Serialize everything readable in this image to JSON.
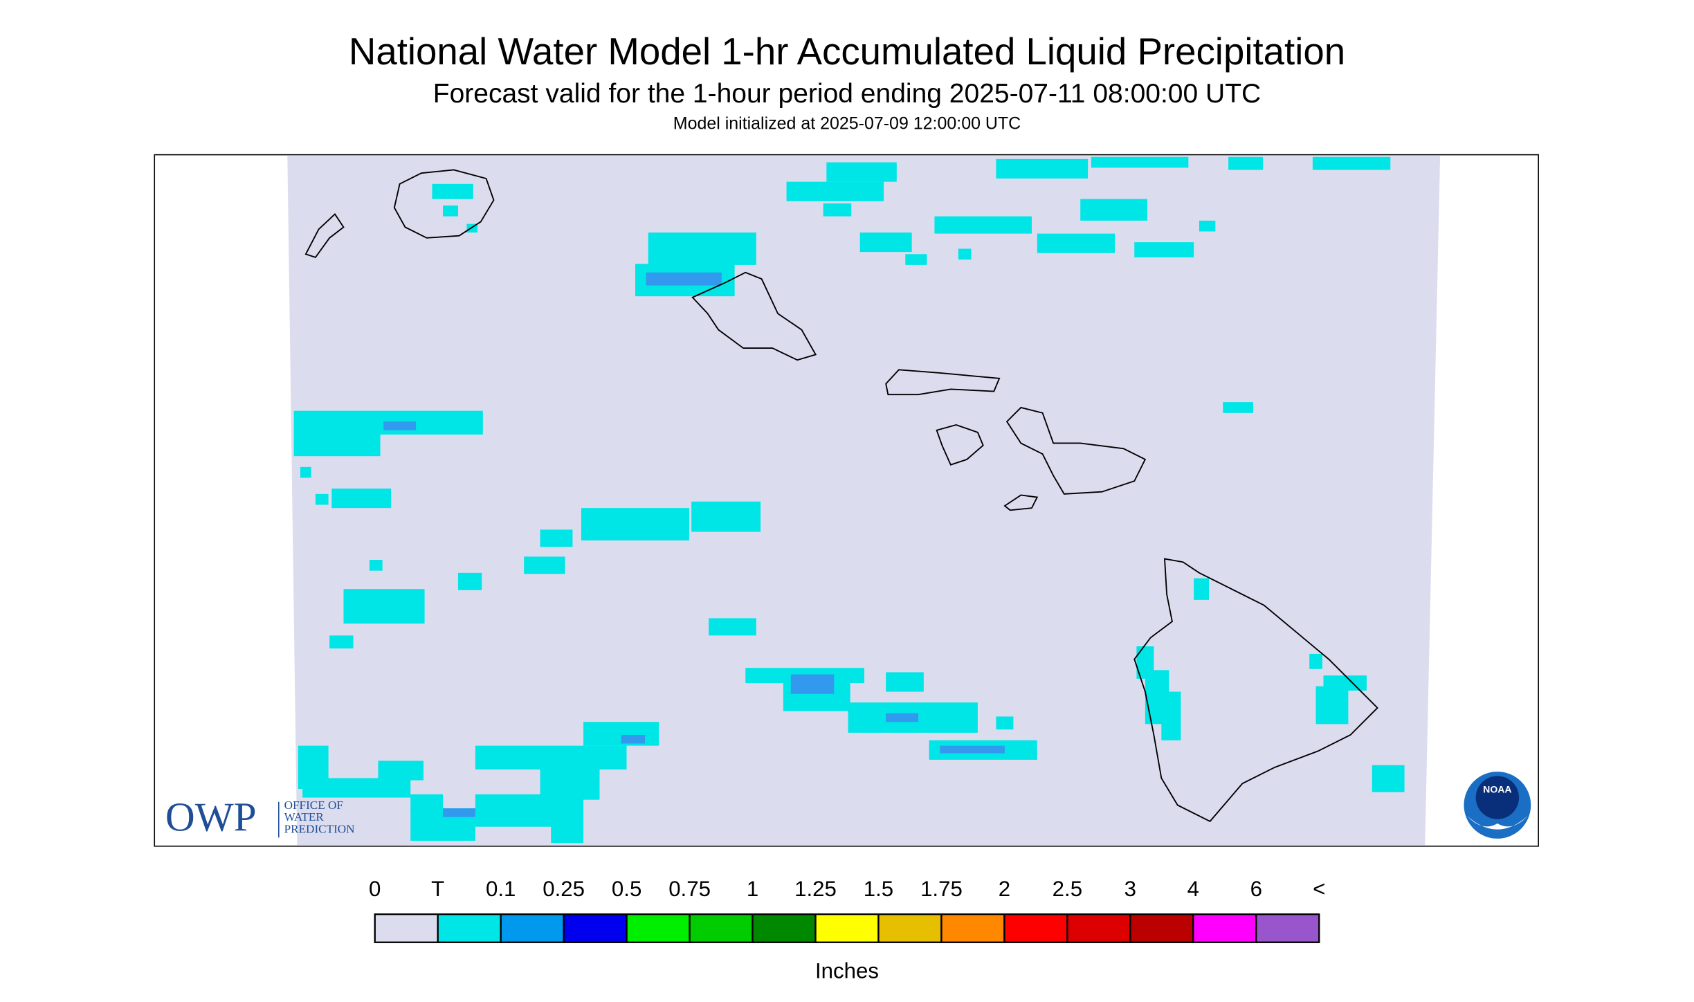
{
  "header": {
    "title": "National Water Model 1-hr Accumulated Liquid Precipitation",
    "subtitle": "Forecast valid for the 1-hour period ending 2025-07-11 08:00:00 UTC",
    "init": "Model initialized at 2025-07-09 12:00:00 UTC"
  },
  "logos": {
    "owp": "OWP",
    "owp_line1": "OFFICE OF",
    "owp_line2": "WATER",
    "owp_line3": "PREDICTION",
    "noaa": "NOAA"
  },
  "legend": {
    "labels": [
      "0",
      "T",
      "0.1",
      "0.25",
      "0.5",
      "0.75",
      "1",
      "1.25",
      "1.5",
      "1.75",
      "2",
      "2.5",
      "3",
      "4",
      "6",
      "<"
    ],
    "colors": [
      "#dcdcef",
      "#00e5e5",
      "#0099ee",
      "#0000ee",
      "#00ee00",
      "#00cc00",
      "#008800",
      "#ffff00",
      "#e5bf00",
      "#ff8800",
      "#ff0000",
      "#dd0000",
      "#bb0000",
      "#ff00ff",
      "#9955cc"
    ],
    "unit": "Inches"
  }
}
